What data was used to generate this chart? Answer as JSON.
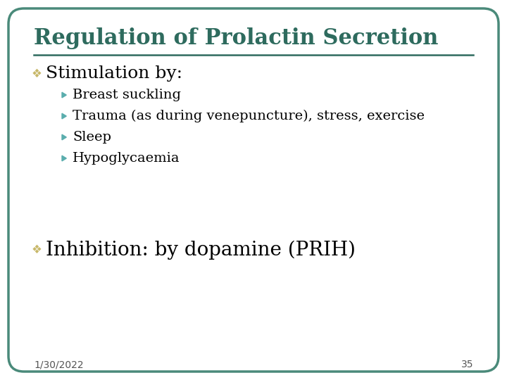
{
  "title": "Regulation of Prolactin Secretion",
  "title_color": "#2E6B5E",
  "title_fontsize": 22,
  "title_bold": true,
  "background_color": "#FFFFFF",
  "border_color": "#4A8A7A",
  "border_linewidth": 2.5,
  "separator_color": "#2E6B5E",
  "bullet1_symbol": "❖",
  "bullet1_color": "#C8B86A",
  "bullet1_text": "Stimulation by:",
  "bullet1_fontsize": 18,
  "bullet1_text_color": "#000000",
  "sub_bullet_symbol": "▶",
  "sub_bullet_color": "#5AADAD",
  "sub_bullets": [
    "Breast suckling",
    "Trauma (as during venepuncture), stress, exercise",
    "Sleep",
    "Hypoglycaemia"
  ],
  "sub_bullet_fontsize": 14,
  "sub_bullet_text_color": "#000000",
  "bullet2_text": "Inhibition: by dopamine (PRIH)",
  "bullet2_fontsize": 20,
  "bullet2_text_color": "#000000",
  "footer_date": "1/30/2022",
  "footer_page": "35",
  "footer_fontsize": 10,
  "footer_color": "#555555"
}
